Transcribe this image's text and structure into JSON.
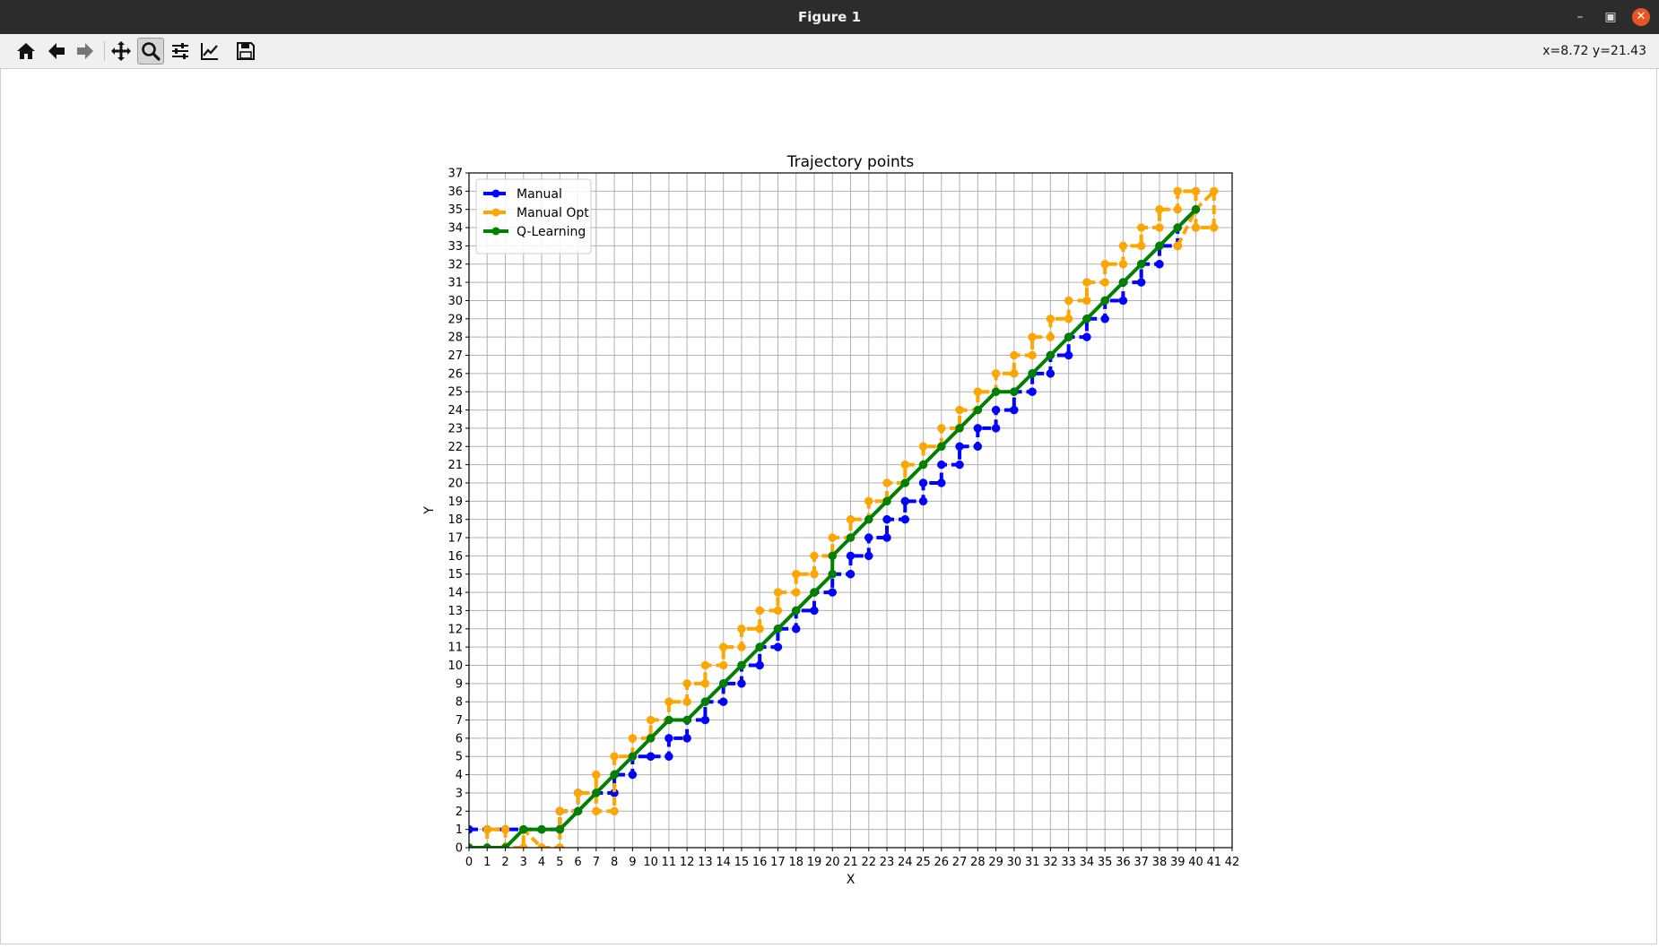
{
  "window": {
    "title": "Figure 1"
  },
  "toolbar": {
    "buttons": [
      {
        "name": "home-button",
        "icon": "home-icon"
      },
      {
        "name": "back-button",
        "icon": "arrow-left-icon"
      },
      {
        "name": "forward-button",
        "icon": "arrow-right-icon"
      },
      {
        "name": "pan-button",
        "icon": "move-icon"
      },
      {
        "name": "zoom-button",
        "icon": "magnifier-icon",
        "active": true
      },
      {
        "name": "configure-subplots-button",
        "icon": "sliders-icon"
      },
      {
        "name": "edit-axis-button",
        "icon": "line-chart-icon"
      },
      {
        "name": "save-button",
        "icon": "floppy-disk-icon"
      }
    ],
    "coords": "x=8.72 y=21.43"
  },
  "chart_data": {
    "type": "line",
    "title": "Trajectory points",
    "xlabel": "X",
    "ylabel": "Y",
    "xlim": [
      0,
      42
    ],
    "ylim": [
      0,
      37
    ],
    "xticks": [
      0,
      1,
      2,
      3,
      4,
      5,
      6,
      7,
      8,
      9,
      10,
      11,
      12,
      13,
      14,
      15,
      16,
      17,
      18,
      19,
      20,
      21,
      22,
      23,
      24,
      25,
      26,
      27,
      28,
      29,
      30,
      31,
      32,
      33,
      34,
      35,
      36,
      37,
      38,
      39,
      40,
      41,
      42
    ],
    "yticks": [
      0,
      1,
      2,
      3,
      4,
      5,
      6,
      7,
      8,
      9,
      10,
      11,
      12,
      13,
      14,
      15,
      16,
      17,
      18,
      19,
      20,
      21,
      22,
      23,
      24,
      25,
      26,
      27,
      28,
      29,
      30,
      31,
      32,
      33,
      34,
      35,
      36,
      37
    ],
    "grid": true,
    "legend_position": "top-left",
    "colors": {
      "Manual": "#0000ff",
      "Manual Opt": "#ffa500",
      "Q-Learning": "#008000"
    },
    "series": [
      {
        "name": "Manual",
        "linestyle": "dashed",
        "x": [
          0,
          1,
          2,
          3,
          4,
          5,
          5,
          6,
          6,
          7,
          7,
          8,
          8,
          9,
          9,
          10,
          10,
          11,
          11,
          12,
          12,
          13,
          13,
          14,
          14,
          15,
          15,
          16,
          16,
          17,
          17,
          18,
          18,
          19,
          19,
          20,
          20,
          21,
          21,
          22,
          22,
          23,
          23,
          24,
          24,
          25,
          25,
          26,
          26,
          27,
          27,
          28,
          28,
          29,
          29,
          30,
          30,
          31,
          31,
          32,
          32,
          33,
          33,
          34,
          34,
          35,
          35,
          36,
          36,
          37,
          37,
          38,
          38,
          39,
          39,
          40
        ],
        "y": [
          1,
          1,
          1,
          1,
          1,
          1,
          2,
          2,
          3,
          3,
          3,
          3,
          4,
          4,
          5,
          5,
          5,
          5,
          6,
          6,
          7,
          7,
          8,
          8,
          9,
          9,
          10,
          10,
          11,
          11,
          12,
          12,
          13,
          13,
          14,
          14,
          15,
          15,
          16,
          16,
          17,
          17,
          18,
          18,
          19,
          19,
          20,
          20,
          21,
          21,
          22,
          22,
          23,
          23,
          24,
          24,
          25,
          25,
          26,
          26,
          27,
          27,
          28,
          28,
          29,
          29,
          30,
          30,
          31,
          31,
          32,
          32,
          33,
          33,
          34,
          35
        ]
      },
      {
        "name": "Manual Opt",
        "linestyle": "dashed",
        "x": [
          0,
          1,
          1,
          2,
          2,
          3,
          3,
          4,
          4,
          5,
          5,
          6,
          6,
          7,
          7,
          7,
          8,
          8,
          9,
          9,
          10,
          10,
          11,
          11,
          12,
          12,
          13,
          13,
          14,
          14,
          15,
          15,
          16,
          16,
          17,
          17,
          18,
          18,
          19,
          19,
          20,
          20,
          21,
          21,
          22,
          22,
          23,
          23,
          24,
          24,
          25,
          25,
          26,
          26,
          27,
          27,
          28,
          28,
          29,
          29,
          30,
          30,
          31,
          31,
          32,
          32,
          33,
          33,
          34,
          34,
          35,
          35,
          36,
          36,
          37,
          37,
          38,
          38,
          39,
          39,
          40,
          40,
          41,
          41,
          40,
          39
        ],
        "y": [
          0,
          0,
          1,
          1,
          0,
          0,
          1,
          0,
          0,
          0,
          2,
          2,
          3,
          3,
          4,
          2,
          2,
          5,
          5,
          6,
          6,
          7,
          7,
          8,
          8,
          9,
          9,
          10,
          10,
          11,
          11,
          12,
          12,
          13,
          13,
          14,
          14,
          15,
          15,
          16,
          16,
          17,
          17,
          18,
          18,
          19,
          19,
          20,
          20,
          21,
          21,
          22,
          22,
          23,
          23,
          24,
          24,
          25,
          25,
          26,
          26,
          27,
          27,
          28,
          28,
          29,
          29,
          30,
          30,
          31,
          31,
          32,
          32,
          33,
          33,
          34,
          34,
          35,
          35,
          36,
          36,
          34,
          34,
          36,
          35,
          33
        ]
      },
      {
        "name": "Q-Learning",
        "linestyle": "solid",
        "x": [
          0,
          1,
          2,
          3,
          4,
          5,
          6,
          7,
          8,
          9,
          10,
          11,
          12,
          13,
          14,
          15,
          16,
          17,
          18,
          19,
          20,
          20,
          21,
          22,
          23,
          24,
          25,
          26,
          27,
          28,
          29,
          30,
          31,
          32,
          33,
          34,
          35,
          36,
          37,
          38,
          39,
          40
        ],
        "y": [
          0,
          0,
          0,
          1,
          1,
          1,
          2,
          3,
          4,
          5,
          6,
          7,
          7,
          8,
          9,
          10,
          11,
          12,
          13,
          14,
          15,
          16,
          17,
          18,
          19,
          20,
          21,
          22,
          23,
          24,
          25,
          25,
          26,
          27,
          28,
          29,
          30,
          31,
          32,
          33,
          34,
          35
        ]
      }
    ]
  }
}
